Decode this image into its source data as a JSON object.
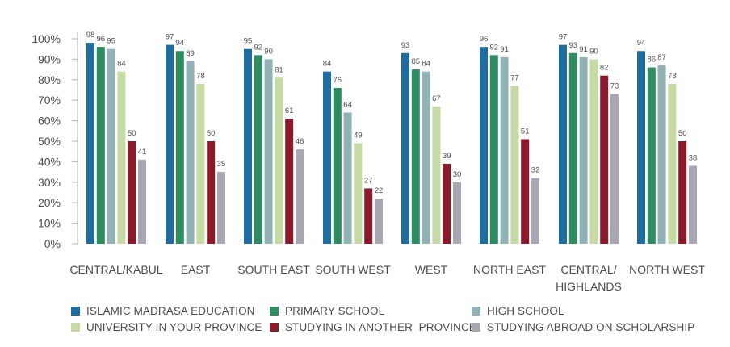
{
  "chart_data": {
    "type": "bar",
    "categories": [
      "CENTRAL/KABUL",
      "EAST",
      "SOUTH EAST",
      "SOUTH WEST",
      "WEST",
      "NORTH EAST",
      "CENTRAL/\nHIGHLANDS",
      "NORTH WEST"
    ],
    "series": [
      {
        "name": "ISLAMIC MADRASA EDUCATION",
        "color": "#1f6d9e",
        "values": [
          98,
          97,
          95,
          84,
          93,
          96,
          97,
          94
        ]
      },
      {
        "name": "PRIMARY SCHOOL",
        "color": "#2e8c61",
        "values": [
          96,
          94,
          92,
          76,
          85,
          92,
          93,
          86
        ]
      },
      {
        "name": "HIGH SCHOOL",
        "color": "#92b3b5",
        "values": [
          95,
          89,
          90,
          64,
          84,
          91,
          91,
          87
        ]
      },
      {
        "name": "UNIVERSITY IN YOUR PROVINCE",
        "color": "#c6dba4",
        "values": [
          84,
          78,
          81,
          49,
          67,
          77,
          90,
          78
        ]
      },
      {
        "name": "STUDYING IN ANOTHER  PROVINCE",
        "color": "#8b1a2b",
        "values": [
          50,
          50,
          61,
          27,
          39,
          51,
          82,
          50
        ]
      },
      {
        "name": "STUDYING ABROAD ON SCHOLARSHIP",
        "color": "#a8a7b3",
        "values": [
          41,
          35,
          46,
          22,
          30,
          32,
          73,
          38
        ]
      }
    ],
    "y_ticks": [
      "0%",
      "10%",
      "20%",
      "30%",
      "40%",
      "50%",
      "60%",
      "70%",
      "80%",
      "90%",
      "100%"
    ],
    "ylim": [
      0,
      100
    ],
    "grid": false,
    "legend_position": "bottom"
  }
}
